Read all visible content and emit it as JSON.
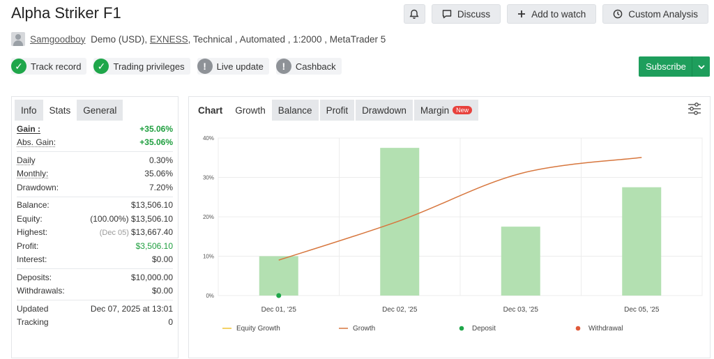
{
  "header": {
    "title": "Alpha Striker F1",
    "actions": {
      "discuss": "Discuss",
      "watch": "Add to watch",
      "analysis": "Custom Analysis"
    }
  },
  "meta": {
    "user": "Samgoodboy",
    "account": "Demo (USD),",
    "broker": "EXNESS",
    "rest": ", Technical , Automated , 1:2000 , MetaTrader 5"
  },
  "badges": [
    {
      "label": "Track record",
      "status": "ok"
    },
    {
      "label": "Trading privileges",
      "status": "ok"
    },
    {
      "label": "Live update",
      "status": "warn"
    },
    {
      "label": "Cashback",
      "status": "warn"
    }
  ],
  "subscribe": {
    "label": "Subscribe"
  },
  "left_tabs": [
    "Info",
    "Stats",
    "General"
  ],
  "stats": {
    "gain": {
      "label": "Gain :",
      "value": "+35.06%"
    },
    "abs_gain": {
      "label": "Abs. Gain:",
      "value": "+35.06%"
    },
    "daily": {
      "label": "Daily",
      "value": "0.30%"
    },
    "monthly": {
      "label": "Monthly:",
      "value": "35.06%"
    },
    "drawdown": {
      "label": "Drawdown:",
      "value": "7.20%"
    },
    "balance": {
      "label": "Balance:",
      "value": "$13,506.10"
    },
    "equity": {
      "label": "Equity:",
      "note": "(100.00%)",
      "value": "$13,506.10"
    },
    "highest": {
      "label": "Highest:",
      "note": "(Dec 05)",
      "value": "$13,667.40"
    },
    "profit": {
      "label": "Profit:",
      "value": "$3,506.10"
    },
    "interest": {
      "label": "Interest:",
      "value": "$0.00"
    },
    "deposits": {
      "label": "Deposits:",
      "value": "$10,000.00"
    },
    "withdrawals": {
      "label": "Withdrawals:",
      "value": "$0.00"
    },
    "updated": {
      "label": "Updated",
      "value": "Dec 07, 2025 at 13:01"
    },
    "tracking": {
      "label": "Tracking",
      "value": "0"
    }
  },
  "right_tabs": {
    "chart": "Chart",
    "growth": "Growth",
    "balance": "Balance",
    "profit": "Profit",
    "drawdown": "Drawdown",
    "margin": "Margin",
    "new_badge": "New"
  },
  "colors": {
    "bar": "#b3e0b1",
    "growth_line": "#d7763d",
    "equity_line": "#f1c232",
    "deposit": "#1fa64a",
    "withdrawal": "#e05a3a",
    "accent": "#1e9e5c"
  },
  "chart_data": {
    "type": "bar",
    "categories": [
      "Dec 01, '25",
      "Dec 02, '25",
      "Dec 03, '25",
      "Dec 05, '25"
    ],
    "series": [
      {
        "name": "",
        "type": "bar",
        "values": [
          10,
          37.5,
          17.5,
          27.5
        ]
      },
      {
        "name": "Growth",
        "type": "line",
        "values": [
          9,
          19,
          31,
          35.06
        ]
      }
    ],
    "deposit_points": [
      {
        "category": "Dec 01, '25",
        "value": 0
      }
    ],
    "legend": [
      "Equity Growth",
      "Growth",
      "Deposit",
      "Withdrawal"
    ],
    "y_ticks": [
      "0%",
      "10%",
      "20%",
      "30%",
      "40%"
    ],
    "ylim": [
      0,
      40
    ],
    "grid": true,
    "legend_position": "bottom"
  }
}
